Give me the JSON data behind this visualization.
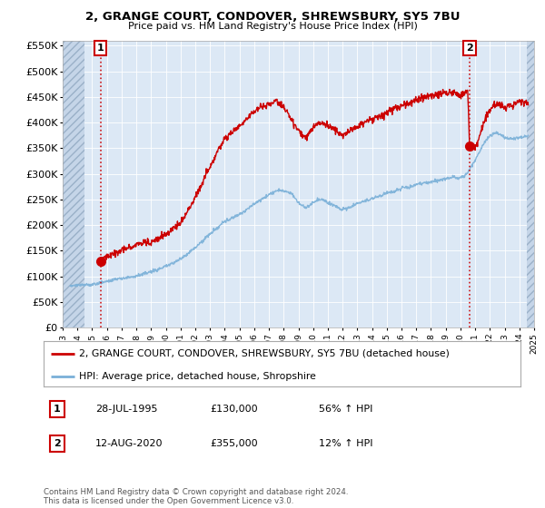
{
  "title": "2, GRANGE COURT, CONDOVER, SHREWSBURY, SY5 7BU",
  "subtitle": "Price paid vs. HM Land Registry's House Price Index (HPI)",
  "hpi_label": "HPI: Average price, detached house, Shropshire",
  "property_label": "2, GRANGE COURT, CONDOVER, SHREWSBURY, SY5 7BU (detached house)",
  "sale1_date": "28-JUL-1995",
  "sale1_price": 130000,
  "sale1_note": "56% ↑ HPI",
  "sale2_date": "12-AUG-2020",
  "sale2_price": 355000,
  "sale2_note": "12% ↑ HPI",
  "sale1_year": 1995.57,
  "sale2_year": 2020.62,
  "ylim_min": 0,
  "ylim_max": 560000,
  "xlim_min": 1993,
  "xlim_max": 2025,
  "plot_bg_color": "#dce8f5",
  "red_color": "#cc0000",
  "blue_color": "#7ab0d8",
  "footnote": "Contains HM Land Registry data © Crown copyright and database right 2024.\nThis data is licensed under the Open Government Licence v3.0."
}
